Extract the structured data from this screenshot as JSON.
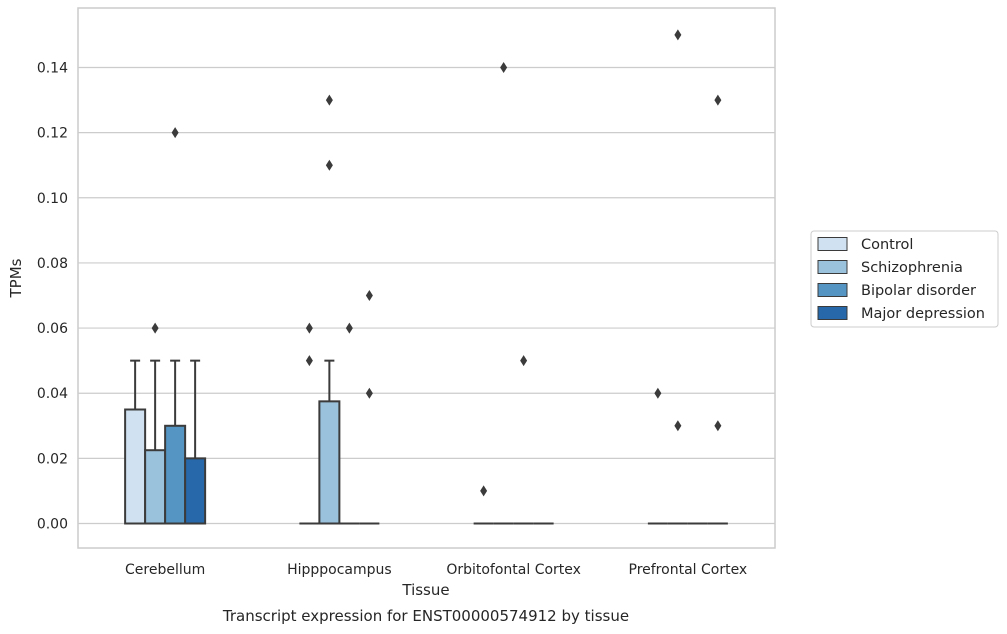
{
  "chart_data": {
    "type": "box",
    "xlabel": "Tissue",
    "ylabel": "TPMs",
    "caption": "Transcript expression for ENST00000574912 by tissue",
    "categories": [
      "Cerebellum",
      "Hipppocampus",
      "Orbitofontal Cortex",
      "Prefrontal Cortex"
    ],
    "ylim": [
      -0.0075,
      0.157
    ],
    "yticks": [
      "0.00",
      "0.02",
      "0.04",
      "0.06",
      "0.08",
      "0.10",
      "0.12",
      "0.14"
    ],
    "yticks_values": [
      0,
      0.02,
      0.04,
      0.06,
      0.08,
      0.1,
      0.12,
      0.14
    ],
    "grid": true,
    "legend_position": "right",
    "series": [
      {
        "name": "Control",
        "color": "#d0e1f1",
        "boxes": [
          {
            "q1": 0,
            "median": 0,
            "q3": 0.035,
            "whisker_low": 0,
            "whisker_high": 0.05,
            "outliers": []
          },
          {
            "q1": 0,
            "median": 0,
            "q3": 0,
            "whisker_low": 0,
            "whisker_high": 0,
            "outliers": [
              0.05,
              0.06
            ]
          },
          {
            "q1": 0,
            "median": 0,
            "q3": 0,
            "whisker_low": 0,
            "whisker_high": 0,
            "outliers": [
              0.01
            ]
          },
          {
            "q1": 0,
            "median": 0,
            "q3": 0,
            "whisker_low": 0,
            "whisker_high": 0,
            "outliers": [
              0.04
            ]
          }
        ]
      },
      {
        "name": "Schizophrenia",
        "color": "#9ac2dc",
        "boxes": [
          {
            "q1": 0,
            "median": 0,
            "q3": 0.0225,
            "whisker_low": 0,
            "whisker_high": 0.05,
            "outliers": [
              0.06
            ]
          },
          {
            "q1": 0,
            "median": 0,
            "q3": 0.0375,
            "whisker_low": 0,
            "whisker_high": 0.05,
            "outliers": [
              0.11,
              0.13
            ]
          },
          {
            "q1": 0,
            "median": 0,
            "q3": 0,
            "whisker_low": 0,
            "whisker_high": 0,
            "outliers": [
              0.14
            ]
          },
          {
            "q1": 0,
            "median": 0,
            "q3": 0,
            "whisker_low": 0,
            "whisker_high": 0,
            "outliers": [
              0.03,
              0.15
            ]
          }
        ]
      },
      {
        "name": "Bipolar disorder",
        "color": "#5495c4",
        "boxes": [
          {
            "q1": 0,
            "median": 0,
            "q3": 0.03,
            "whisker_low": 0,
            "whisker_high": 0.05,
            "outliers": [
              0.12
            ]
          },
          {
            "q1": 0,
            "median": 0,
            "q3": 0,
            "whisker_low": 0,
            "whisker_high": 0,
            "outliers": [
              0.06
            ]
          },
          {
            "q1": 0,
            "median": 0,
            "q3": 0,
            "whisker_low": 0,
            "whisker_high": 0,
            "outliers": [
              0.05
            ]
          },
          {
            "q1": 0,
            "median": 0,
            "q3": 0,
            "whisker_low": 0,
            "whisker_high": 0,
            "outliers": []
          }
        ]
      },
      {
        "name": "Major depression",
        "color": "#2668aa",
        "boxes": [
          {
            "q1": 0,
            "median": 0,
            "q3": 0.02,
            "whisker_low": 0,
            "whisker_high": 0.05,
            "outliers": []
          },
          {
            "q1": 0,
            "median": 0,
            "q3": 0,
            "whisker_low": 0,
            "whisker_high": 0,
            "outliers": [
              0.04,
              0.07
            ]
          },
          {
            "q1": 0,
            "median": 0,
            "q3": 0,
            "whisker_low": 0,
            "whisker_high": 0,
            "outliers": []
          },
          {
            "q1": 0,
            "median": 0,
            "q3": 0,
            "whisker_low": 0,
            "whisker_high": 0,
            "outliers": [
              0.03,
              0.13
            ]
          }
        ]
      }
    ]
  }
}
